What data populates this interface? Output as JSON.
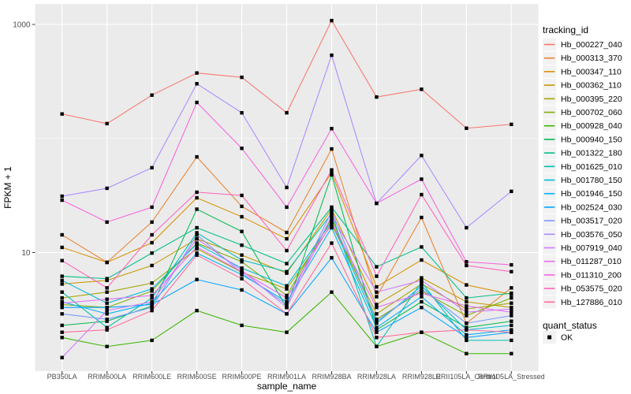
{
  "figure": {
    "colors": {
      "page_background": "#FFFFFF",
      "panel_background": "#EBEBEB",
      "grid": "#FFFFFF",
      "axis_text": "#4D4D4D",
      "title_text": "#000000",
      "tick_mark": "#333333",
      "legend_key_background": "#F2F2F2",
      "point": "#000000"
    }
  },
  "chart_data": {
    "type": "line",
    "x_type": "categorical",
    "y_scale": "log10",
    "title": "",
    "xlabel": "sample_name",
    "ylabel": "FPKM + 1",
    "grid": true,
    "legend_position": "right",
    "legend_title": "tracking_id",
    "point_marker": "black-square",
    "y_ticks": [
      {
        "label": "1000",
        "value": 1000
      },
      {
        "label": "10",
        "value": 10
      }
    ],
    "y_minor_gridlines": [
      100
    ],
    "ylim": [
      0.91,
      1500
    ],
    "categories": [
      "PB350LA",
      "RRIM600LA",
      "RRIM600LE",
      "RRIM600SE",
      "RRIM600PE",
      "RRIM901LA",
      "RRIM928BA",
      "RRIM928LA",
      "RRIM928LE",
      "RRII105LA_Control",
      "RRII105LA_Stressed"
    ],
    "series": [
      {
        "name": "Hb_000227_040",
        "color": "#F8766D",
        "values": [
          164,
          135,
          240,
          375,
          344,
          168,
          1080,
          231,
          270,
          123,
          133
        ]
      },
      {
        "name": "Hb_000313_370",
        "color": "#EA8331",
        "values": [
          14.3,
          8.2,
          18.5,
          69,
          25.4,
          15,
          81,
          4.1,
          20.3,
          2.4,
          4.9
        ]
      },
      {
        "name": "Hb_000347_110",
        "color": "#D89000",
        "values": [
          11.1,
          8.2,
          12.2,
          30.2,
          20.6,
          13.2,
          50,
          5,
          8.6,
          5.2,
          4.3
        ]
      },
      {
        "name": "Hb_000362_110",
        "color": "#C49A00",
        "values": [
          5.3,
          5.7,
          7.7,
          13.2,
          9.5,
          6.6,
          24,
          3.5,
          6,
          3.7,
          3.3
        ]
      },
      {
        "name": "Hb_000395_220",
        "color": "#A3A500",
        "values": [
          4,
          4.5,
          5.4,
          10.8,
          6.7,
          4.8,
          17.6,
          2.9,
          5.3,
          3.2,
          3.6
        ]
      },
      {
        "name": "Hb_000702_060",
        "color": "#7CAE00",
        "values": [
          3.5,
          3.3,
          4.6,
          12.1,
          8.3,
          4.2,
          19.8,
          2.6,
          4.6,
          2.8,
          4
        ]
      },
      {
        "name": "Hb_000928_040",
        "color": "#39B600",
        "values": [
          1.8,
          1.5,
          1.7,
          3.1,
          2.3,
          2,
          4.5,
          1.5,
          2,
          1.3,
          1.3
        ]
      },
      {
        "name": "Hb_000940_150",
        "color": "#00BB4E",
        "values": [
          2.3,
          2.5,
          3.4,
          24,
          15.3,
          3.3,
          48,
          2.1,
          3.7,
          2.2,
          2.5
        ]
      },
      {
        "name": "Hb_001322_180",
        "color": "#00C087",
        "values": [
          6.2,
          5.9,
          9.9,
          16.5,
          11.6,
          8,
          25,
          7.5,
          11.2,
          4,
          4.4
        ]
      },
      {
        "name": "Hb_001625_010",
        "color": "#00C0AF",
        "values": [
          4.5,
          2.2,
          4,
          14.9,
          8.6,
          6.8,
          22,
          1.5,
          5.5,
          1.7,
          1.7
        ]
      },
      {
        "name": "Hb_001780_150",
        "color": "#00BCD8",
        "values": [
          5.7,
          3.6,
          4.8,
          11.9,
          7.3,
          5.1,
          18.7,
          2.4,
          5.1,
          2.1,
          2.3
        ]
      },
      {
        "name": "Hb_001946_150",
        "color": "#00B0F6",
        "values": [
          3.7,
          2.9,
          3.6,
          9.9,
          6.4,
          3.7,
          16.5,
          2.2,
          4.1,
          1.9,
          2.1
        ]
      },
      {
        "name": "Hb_002524_030",
        "color": "#00A5FF",
        "values": [
          3.3,
          3.3,
          3.5,
          5.8,
          4.7,
          2.9,
          9,
          2,
          3.3,
          1.8,
          2
        ]
      },
      {
        "name": "Hb_003517_020",
        "color": "#7997FF",
        "values": [
          2.9,
          2.6,
          3.3,
          14.3,
          6.6,
          3.5,
          23,
          2.5,
          4.8,
          2.4,
          2.8
        ]
      },
      {
        "name": "Hb_003576_050",
        "color": "#AC88FF",
        "values": [
          31.2,
          36.6,
          55.4,
          302,
          168,
          37.2,
          537,
          27,
          71,
          16.5,
          34.4
        ]
      },
      {
        "name": "Hb_007919_040",
        "color": "#CF78FF",
        "values": [
          1.2,
          3.1,
          3.7,
          13.2,
          7,
          3.3,
          21,
          4.5,
          5.7,
          3,
          3.2
        ]
      },
      {
        "name": "Hb_011287_010",
        "color": "#E76BF3",
        "values": [
          3.6,
          3.9,
          4.2,
          11.2,
          6.8,
          4,
          18.2,
          3.3,
          4.4,
          3.4,
          3
        ]
      },
      {
        "name": "Hb_011310_200",
        "color": "#F763DF",
        "values": [
          28.8,
          18.5,
          25,
          207,
          82,
          25,
          122,
          27,
          44,
          8.3,
          7.8
        ]
      },
      {
        "name": "Hb_053575_020",
        "color": "#FF62BC",
        "values": [
          8.5,
          4.9,
          14.3,
          33.8,
          31.7,
          10.4,
          53,
          6.2,
          32.2,
          7.7,
          6.8
        ]
      },
      {
        "name": "Hb_127886_010",
        "color": "#FF6A98",
        "values": [
          2,
          2.1,
          3.1,
          9.5,
          5.9,
          2.9,
          12.1,
          1.8,
          2,
          2.1,
          2
        ]
      }
    ],
    "quant_status_legend": {
      "title": "quant_status",
      "items": [
        "OK"
      ]
    }
  }
}
